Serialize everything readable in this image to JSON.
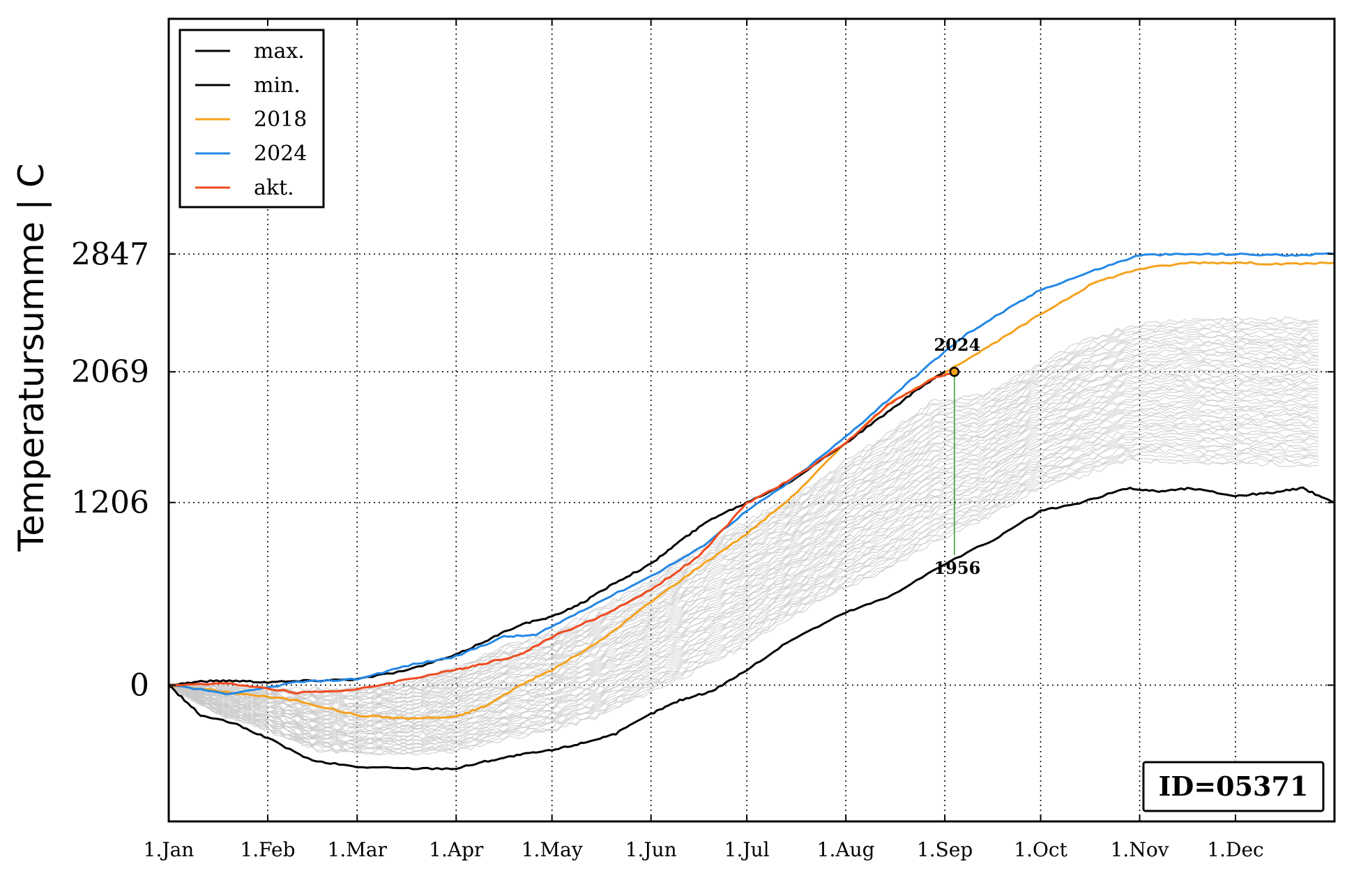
{
  "chart_data": {
    "type": "line",
    "ylabel": "Temperatursumme | C",
    "xlabel": "",
    "x_ticks": [
      "1.Jan",
      "1.Feb",
      "1.Mar",
      "1.Apr",
      "1.May",
      "1.Jun",
      "1.Jul",
      "1.Aug",
      "1.Sep",
      "1.Oct",
      "1.Nov",
      "1.Dec"
    ],
    "x_tick_days": [
      0,
      31,
      59,
      90,
      120,
      151,
      181,
      212,
      243,
      273,
      304,
      334
    ],
    "xlim": [
      0,
      365
    ],
    "ylim": [
      -900,
      4400
    ],
    "y_ticks": [
      0,
      1206,
      2069,
      2847
    ],
    "grid": true,
    "legend_position": "top-left",
    "colors": {
      "max": "#000000",
      "min": "#000000",
      "y2018": "#f5a21d",
      "y2024": "#2387e6",
      "akt": "#ef4a1e",
      "history": "#c8c8c8",
      "marker_line": "#2e9b2e"
    },
    "legend": [
      "max.",
      "min.",
      "2018",
      "2024",
      "akt."
    ],
    "series": [
      {
        "name": "max.",
        "x": [
          0,
          10,
          20,
          31,
          45,
          59,
          75,
          90,
          100,
          110,
          120,
          130,
          140,
          151,
          160,
          170,
          181,
          195,
          212,
          225,
          235,
          243
        ],
        "y": [
          0,
          25,
          30,
          20,
          30,
          40,
          100,
          200,
          300,
          400,
          450,
          550,
          680,
          800,
          950,
          1100,
          1206,
          1350,
          1600,
          1800,
          1960,
          2069
        ]
      },
      {
        "name": "min.",
        "x": [
          0,
          10,
          20,
          31,
          45,
          59,
          75,
          90,
          100,
          110,
          120,
          130,
          140,
          151,
          160,
          170,
          181,
          195,
          212,
          225,
          243,
          260,
          273,
          285,
          300,
          310,
          320,
          334,
          345,
          355,
          365
        ],
        "y": [
          0,
          -200,
          -250,
          -350,
          -500,
          -540,
          -550,
          -550,
          -500,
          -460,
          -430,
          -380,
          -320,
          -190,
          -100,
          -40,
          100,
          300,
          480,
          580,
          800,
          980,
          1150,
          1200,
          1300,
          1280,
          1300,
          1250,
          1270,
          1300,
          1206
        ]
      },
      {
        "name": "2018",
        "x": [
          0,
          20,
          40,
          59,
          75,
          90,
          100,
          110,
          120,
          135,
          151,
          166,
          181,
          195,
          212,
          225,
          243,
          258,
          273,
          290,
          304,
          320,
          334,
          350,
          365
        ],
        "y": [
          0,
          -50,
          -100,
          -200,
          -220,
          -210,
          -130,
          0,
          100,
          290,
          550,
          780,
          1000,
          1240,
          1600,
          1850,
          2069,
          2250,
          2450,
          2660,
          2750,
          2790,
          2790,
          2780,
          2790
        ]
      },
      {
        "name": "2024",
        "x": [
          0,
          20,
          40,
          59,
          75,
          90,
          105,
          115,
          130,
          151,
          166,
          181,
          195,
          212,
          225,
          240,
          250,
          260,
          273,
          290,
          304,
          320,
          334,
          350,
          365
        ],
        "y": [
          0,
          -60,
          20,
          40,
          130,
          190,
          320,
          330,
          500,
          720,
          900,
          1150,
          1350,
          1640,
          1880,
          2150,
          2320,
          2450,
          2610,
          2740,
          2840,
          2845,
          2845,
          2840,
          2847
        ]
      },
      {
        "name": "akt.",
        "x": [
          0,
          20,
          40,
          59,
          75,
          90,
          100,
          110,
          120,
          135,
          151,
          166,
          181,
          195,
          212,
          225,
          240,
          246
        ],
        "y": [
          0,
          10,
          -50,
          -30,
          40,
          100,
          150,
          200,
          320,
          450,
          630,
          850,
          1200,
          1360,
          1600,
          1850,
          2030,
          2069
        ]
      }
    ],
    "marker": {
      "day": 246,
      "value": 2069,
      "top_label": "2024",
      "bottom_label": "1956",
      "bottom_value": 860
    },
    "id_label": "ID=05371"
  }
}
